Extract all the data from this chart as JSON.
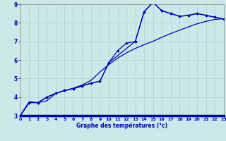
{
  "xlabel": "Graphe des températures (°c)",
  "xlim": [
    0,
    23
  ],
  "ylim": [
    3,
    9
  ],
  "yticks": [
    3,
    4,
    5,
    6,
    7,
    8,
    9
  ],
  "xticks": [
    0,
    1,
    2,
    3,
    4,
    5,
    6,
    7,
    8,
    9,
    10,
    11,
    12,
    13,
    14,
    15,
    16,
    17,
    18,
    19,
    20,
    21,
    22,
    23
  ],
  "bg_color": "#cce8e8",
  "grid_color": "#aacccc",
  "line_color": "#0000bb",
  "label_color": "#0000bb",
  "line1_x": [
    0,
    1,
    2,
    3,
    4,
    5,
    6,
    7,
    8,
    9,
    10,
    11,
    12,
    13,
    14,
    15,
    16,
    17,
    18,
    19,
    20,
    21,
    22,
    23
  ],
  "line1_y": [
    3.0,
    3.7,
    3.7,
    4.0,
    4.2,
    4.35,
    4.45,
    4.6,
    4.75,
    4.85,
    5.85,
    6.5,
    6.9,
    7.0,
    8.6,
    9.1,
    8.65,
    8.5,
    8.35,
    8.4,
    8.5,
    8.4,
    8.3,
    8.2
  ],
  "line2_x": [
    0,
    1,
    2,
    3,
    4,
    5,
    6,
    7,
    8,
    9,
    10,
    11,
    12,
    13,
    14,
    15,
    16,
    17,
    18,
    19,
    20,
    21,
    22,
    23
  ],
  "line2_y": [
    3.0,
    3.75,
    3.7,
    3.8,
    4.2,
    4.35,
    4.48,
    4.65,
    4.9,
    5.35,
    5.75,
    6.1,
    6.38,
    6.62,
    6.82,
    7.0,
    7.22,
    7.42,
    7.6,
    7.78,
    7.95,
    8.08,
    8.18,
    8.22
  ],
  "line3_x": [
    0,
    1,
    2,
    3,
    4,
    5,
    6,
    7,
    8,
    9,
    10,
    13,
    14,
    15,
    16,
    17,
    18,
    19,
    20,
    21,
    22,
    23
  ],
  "line3_y": [
    3.0,
    3.7,
    3.7,
    4.0,
    4.2,
    4.35,
    4.45,
    4.6,
    4.75,
    4.85,
    5.85,
    7.0,
    8.6,
    9.1,
    8.65,
    8.5,
    8.35,
    8.4,
    8.5,
    8.4,
    8.3,
    8.2
  ]
}
